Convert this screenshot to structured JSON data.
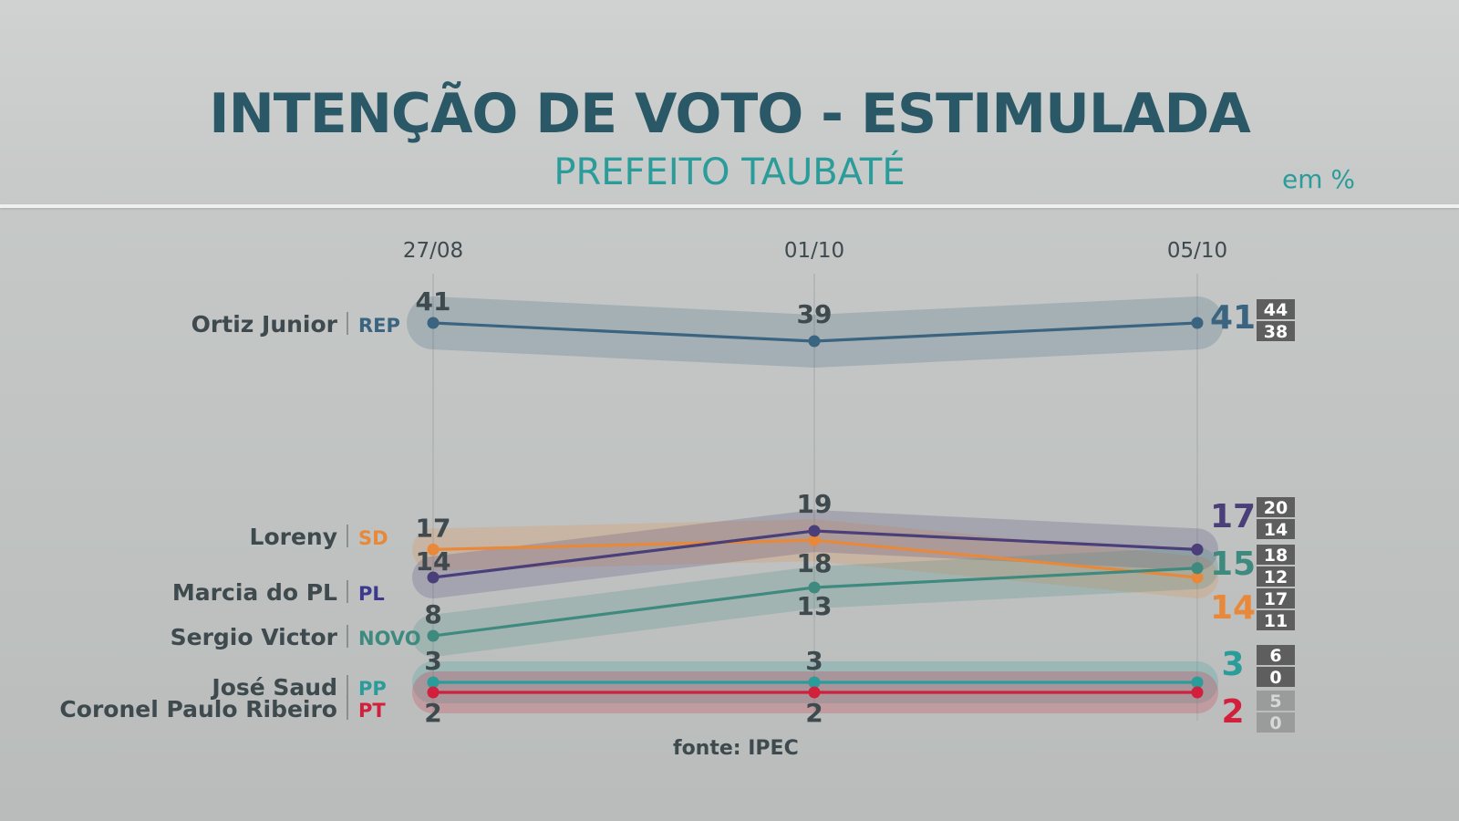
{
  "header": {
    "title": "INTENÇÃO DE VOTO - ESTIMULADA",
    "subtitle": "PREFEITO TAUBATÉ",
    "unit": "em %"
  },
  "source": "fonte: IPEC",
  "colors": {
    "title": "#2b5866",
    "subtitle": "#2a9c9a",
    "range_box": "#5e5e5e"
  },
  "chart_data": {
    "type": "line",
    "x": [
      "27/08",
      "01/10",
      "05/10"
    ],
    "ylabel": "",
    "series": [
      {
        "name": "Ortiz Junior",
        "party": "REP",
        "color": "#3a6480",
        "party_color": "#3a6480",
        "values": [
          41,
          39,
          41
        ],
        "range": [
          44,
          38
        ]
      },
      {
        "name": "Loreny",
        "party": "SD",
        "color": "#e8883a",
        "party_color": "#e8883a",
        "values": [
          17,
          18,
          14
        ],
        "range": [
          17,
          11
        ]
      },
      {
        "name": "Marcia do PL",
        "party": "PL",
        "color": "#4a3f78",
        "party_color": "#3b3a8c",
        "values": [
          14,
          19,
          17
        ],
        "range": [
          20,
          14
        ]
      },
      {
        "name": "Sergio Victor",
        "party": "NOVO",
        "color": "#3f8a7f",
        "party_color": "#3f8a7f",
        "values": [
          8,
          13,
          15
        ],
        "range": [
          18,
          12
        ]
      },
      {
        "name": "José Saud",
        "party": "PP",
        "color": "#2a9c9a",
        "party_color": "#2a9c9a",
        "values": [
          3,
          3,
          3
        ],
        "range": [
          6,
          0
        ]
      },
      {
        "name": "Coronel Paulo Ribeiro",
        "party": "PT",
        "color": "#d21f3c",
        "party_color": "#d21f3c",
        "values": [
          2,
          2,
          2
        ],
        "range": [
          5,
          0
        ]
      }
    ]
  }
}
